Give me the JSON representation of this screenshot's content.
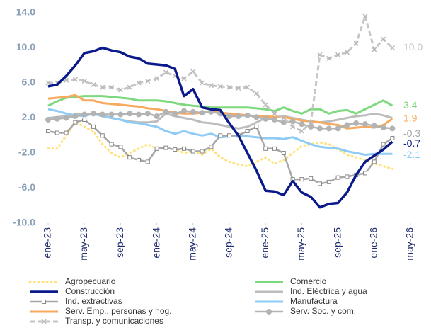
{
  "chart_data": {
    "type": "line",
    "categories": [
      "ene-23",
      null,
      null,
      null,
      "may-23",
      null,
      null,
      null,
      "sep-23",
      null,
      null,
      null,
      "ene-24",
      null,
      null,
      null,
      "may-24",
      null,
      null,
      null,
      "sep-24",
      null,
      null,
      null,
      "ene-25",
      null,
      null,
      null,
      "may-25",
      null,
      null,
      null,
      "sep-25",
      null,
      null,
      null,
      "ene-26",
      null,
      null,
      null,
      "may-26"
    ],
    "ylim": [
      -10,
      14
    ],
    "yticks": [
      {
        "value": -10,
        "label": "-10.0"
      },
      {
        "value": -6,
        "label": "-6.0"
      },
      {
        "value": -2,
        "label": "-2.0"
      },
      {
        "value": 2,
        "label": "2.0"
      },
      {
        "value": 6,
        "label": "6.0"
      },
      {
        "value": 10,
        "label": "10.0"
      },
      {
        "value": 14,
        "label": "14.0"
      }
    ],
    "grid": false,
    "legend": "bottom",
    "series": [
      {
        "name": "Agropecuario",
        "color": "#ffe27a",
        "style": "dotted",
        "values": [
          -1.5,
          -1.5,
          0,
          1.5,
          1,
          0.5,
          -1,
          -2,
          -2.5,
          -2,
          -1.5,
          -1,
          -1.5,
          -1.5,
          -1.5,
          -2,
          -1.8,
          -2.2,
          -1.5,
          -2.5,
          -3,
          -3.3,
          -3.5,
          -3,
          -2.5,
          -3.2,
          -2.8,
          -2,
          -1.2,
          -1,
          -0.8,
          -1,
          -1.6,
          -2.2,
          -2.5,
          -2.8,
          -3.2,
          -3.5,
          -3.8,
          null,
          null
        ]
      },
      {
        "name": "Comercio",
        "color": "#7ed87e",
        "style": "solid",
        "values": [
          3.4,
          3.9,
          4.3,
          4.4,
          4.5,
          4.5,
          4.5,
          4.4,
          4.3,
          4.2,
          4,
          4,
          4,
          3.9,
          3.7,
          3.5,
          3.4,
          3.3,
          3.2,
          3.2,
          3.2,
          3.2,
          3.2,
          3.1,
          3,
          2.8,
          3.2,
          2.8,
          2.5,
          3,
          3,
          2.5,
          2.8,
          2.9,
          2.5,
          3,
          3.5,
          4,
          3.4,
          null,
          null
        ],
        "end_label": "3.4"
      },
      {
        "name": "Construcción",
        "color": "#0b1a8a",
        "style": "thick",
        "values": [
          5.6,
          5.8,
          6.8,
          8,
          9.4,
          9.6,
          10,
          9.7,
          9.5,
          9,
          8.8,
          8.2,
          8.1,
          8,
          7.6,
          4.5,
          5.3,
          3.2,
          3,
          2.9,
          1.4,
          0,
          -2,
          -4,
          -6.3,
          -6.4,
          -6.8,
          -5.2,
          -6.5,
          -7,
          -8.2,
          -7.8,
          -7.7,
          -6.5,
          -4.5,
          -3,
          -2.3,
          -1.6,
          -0.7,
          null,
          null
        ],
        "end_label": "-0.7"
      },
      {
        "name": "Ind. Eléctrica y agua",
        "color": "#bdbdbd",
        "style": "solid",
        "values": [
          2,
          2.1,
          2.2,
          2.4,
          2.5,
          2.4,
          2.3,
          2,
          1.8,
          1.6,
          1.5,
          1.5,
          1.6,
          2.5,
          2.2,
          2,
          1.8,
          1.5,
          1.4,
          1.2,
          1,
          0.8,
          1,
          1.5,
          2,
          2.1,
          2.2,
          2,
          1.8,
          1.6,
          1.5,
          1.6,
          1.8,
          2,
          2.2,
          2.3,
          2.5,
          2.3,
          2,
          null,
          null
        ]
      },
      {
        "name": "Ind. extractivas",
        "color": "#a6a6a6",
        "style": "square",
        "values": [
          0.5,
          0.3,
          0.3,
          1.5,
          1.8,
          1,
          0,
          -1,
          -1.3,
          -2.5,
          -2.8,
          -3,
          -1.5,
          -1.4,
          -1.6,
          -1.5,
          -1.8,
          -1.8,
          -1.3,
          0,
          0,
          0,
          0.5,
          1,
          -1.5,
          -1.5,
          -2,
          -5,
          -5,
          -4.9,
          -5.5,
          -5.3,
          -4.8,
          -4.7,
          -4.5,
          -4.3,
          -3,
          -1,
          -0.3,
          null,
          null
        ],
        "end_label": "-0.3"
      },
      {
        "name": "Manufactura",
        "color": "#8ecbf5",
        "style": "solid",
        "values": [
          3,
          2.8,
          2.5,
          2.3,
          2.2,
          2.5,
          2.2,
          2,
          1.8,
          1.5,
          1.4,
          1.2,
          1,
          0.5,
          0.2,
          0.5,
          0.2,
          0,
          0.2,
          -0.2,
          -0.1,
          -0.1,
          -0.1,
          -0.2,
          -0.3,
          -0.3,
          -0.4,
          -0.2,
          -0.6,
          -1,
          -1.3,
          -1.4,
          -1.5,
          -1.8,
          -2,
          -2.2,
          -2.1,
          -2.1,
          -2.1,
          null,
          null
        ],
        "end_label": "-2.1"
      },
      {
        "name": "Serv. Emp., personas y hog.",
        "color": "#f7a95e",
        "style": "solid",
        "values": [
          4.2,
          4.3,
          4.4,
          4.6,
          4,
          4,
          3.7,
          3.6,
          3.5,
          3.4,
          3.3,
          3.1,
          3,
          2.8,
          2.6,
          2.5,
          2.5,
          2.6,
          2.8,
          2.6,
          2.5,
          2.4,
          2.3,
          2.2,
          2.2,
          2.1,
          2.1,
          1.9,
          1.7,
          1.6,
          1.5,
          1.3,
          1.2,
          0.8,
          0.9,
          1,
          0.9,
          1.2,
          1.9,
          null,
          null
        ],
        "end_label": "1.9"
      },
      {
        "name": "Serv. Soc. y com.",
        "color": "#b3b3b3",
        "style": "circle",
        "values": [
          1.8,
          1.9,
          2,
          2.2,
          2.4,
          2.5,
          2.4,
          2.4,
          2.4,
          2.5,
          2.4,
          2.5,
          2.2,
          2.7,
          2.5,
          2.8,
          2.7,
          2.6,
          2.7,
          2.5,
          2.2,
          2.2,
          2.3,
          2.1,
          1.9,
          1.8,
          1.5,
          1.6,
          1.3,
          1,
          0.8,
          0.8,
          0.8,
          1.2,
          1.4,
          1.3,
          1.1,
          0.9,
          0.8,
          null,
          null
        ]
      },
      {
        "name": "Transp. y comunicaciones",
        "color": "#c6c6c6",
        "style": "dashed",
        "values": [
          6,
          6,
          6.3,
          6.4,
          6.2,
          5.8,
          5.5,
          5.5,
          5.2,
          5.5,
          6,
          6.2,
          6.5,
          7.2,
          6.8,
          6.5,
          7.3,
          6,
          5.7,
          5.6,
          5.5,
          5.4,
          5.5,
          4.8,
          3.5,
          2.5,
          2,
          1,
          0.5,
          1.5,
          9.2,
          8.8,
          9.2,
          9.5,
          10.5,
          13.6,
          9.8,
          11,
          10,
          null,
          null
        ],
        "end_label": "10.0"
      }
    ]
  }
}
